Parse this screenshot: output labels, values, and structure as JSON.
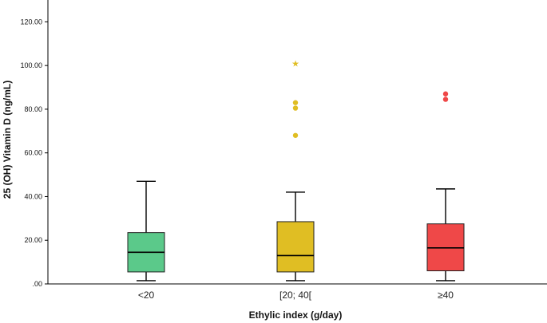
{
  "chart_data": {
    "type": "boxplot",
    "xlabel": "Ethylic index (g/day)",
    "ylabel": "25 (OH) Vitamin D (ng/mL)",
    "ylim": [
      0,
      130
    ],
    "y_ticks": [
      0,
      20,
      40,
      60,
      80,
      100,
      120
    ],
    "y_tick_labels": [
      ".00",
      "20.00",
      "40.00",
      "60.00",
      "80.00",
      "100.00",
      "120.00"
    ],
    "grid": false,
    "categories": [
      "<20",
      "[20; 40[",
      "≥40"
    ],
    "boxes": [
      {
        "category": "<20",
        "whisker_low": 1.5,
        "q1": 5.5,
        "median": 14.5,
        "q3": 23.5,
        "whisker_high": 47,
        "outliers": [],
        "extremes": [],
        "color": "#5bc98a"
      },
      {
        "category": "[20; 40[",
        "whisker_low": 1.5,
        "q1": 5.5,
        "median": 13.0,
        "q3": 28.5,
        "whisker_high": 42,
        "outliers": [
          68,
          80.5,
          83
        ],
        "extremes": [
          101
        ],
        "color": "#e0be23"
      },
      {
        "category": "≥40",
        "whisker_low": 1.5,
        "q1": 6.0,
        "median": 16.5,
        "q3": 27.5,
        "whisker_high": 43.5,
        "outliers": [
          84.5,
          87
        ],
        "extremes": [],
        "color": "#ef4848"
      }
    ]
  }
}
